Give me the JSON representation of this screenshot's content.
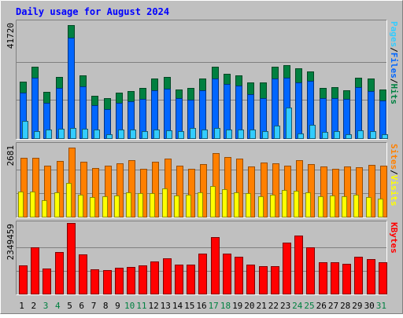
{
  "title": "Daily usage for August 2024",
  "colors": {
    "background": "#c0c0c0",
    "title_text": "#0000ff",
    "frame_dark": "#808080",
    "frame_light": "#ffffff",
    "pages": "#33ccff",
    "files": "#0066ff",
    "hits": "#008040",
    "visits": "#ffff00",
    "sites": "#ff8000",
    "kbytes": "#ff0000",
    "gridline": "#808080",
    "day_normal": "#000000",
    "day_weekend": "#008040"
  },
  "chart_data": [
    {
      "type": "bar",
      "name": "hits-files-pages",
      "y_max_label": "41720",
      "ymax": 41720,
      "legend": [
        {
          "text": "Pages",
          "color": "#33ccff"
        },
        {
          "text": "/",
          "color": "#000000"
        },
        {
          "text": "Files",
          "color": "#0066ff"
        },
        {
          "text": "/",
          "color": "#000000"
        },
        {
          "text": "Hits",
          "color": "#008040"
        }
      ],
      "series": [
        {
          "name": "Hits",
          "color": "#008040",
          "values": [
            20690,
            26290,
            16860,
            22560,
            41300,
            22980,
            15660,
            14730,
            16610,
            17380,
            18440,
            21940,
            22330,
            17790,
            18310,
            21990,
            26310,
            23610,
            23110,
            20360,
            20320,
            26300,
            26790,
            25480,
            24390,
            18530,
            18670,
            17660,
            22230,
            21830,
            17910
          ]
        },
        {
          "name": "Files",
          "color": "#0066ff",
          "values": [
            16780,
            22230,
            12820,
            18290,
            36890,
            18910,
            12050,
            10730,
            12960,
            13440,
            14380,
            17680,
            18070,
            14660,
            14190,
            17640,
            21940,
            19730,
            19240,
            16220,
            14720,
            21980,
            22230,
            20350,
            20930,
            14610,
            14670,
            14320,
            18700,
            17200,
            13830
          ]
        },
        {
          "name": "Pages",
          "color": "#33ccff",
          "values": [
            6390,
            2610,
            3230,
            3540,
            3790,
            3540,
            3110,
            1320,
            3170,
            3210,
            2640,
            3120,
            2990,
            2520,
            3620,
            3200,
            3790,
            3100,
            3040,
            3070,
            2660,
            4730,
            11190,
            1610,
            4840,
            2310,
            2570,
            1530,
            2940,
            2530,
            1470
          ]
        }
      ],
      "categories": [
        "1",
        "2",
        "3",
        "4",
        "5",
        "6",
        "7",
        "8",
        "9",
        "10",
        "11",
        "12",
        "13",
        "14",
        "15",
        "16",
        "17",
        "18",
        "19",
        "20",
        "21",
        "22",
        "23",
        "24",
        "25",
        "26",
        "27",
        "28",
        "29",
        "30",
        "31"
      ]
    },
    {
      "type": "bar",
      "name": "visits-sites",
      "y_max_label": "2681",
      "ymax": 2681,
      "legend": [
        {
          "text": "Sites",
          "color": "#ff8000"
        },
        {
          "text": "/",
          "color": "#000000"
        },
        {
          "text": "Visits",
          "color": "#ffff00"
        }
      ],
      "series": [
        {
          "name": "Sites",
          "color": "#ff8000",
          "values": [
            2270,
            2250,
            1970,
            2140,
            2640,
            2100,
            1870,
            1960,
            2060,
            2180,
            1830,
            2110,
            2240,
            1960,
            1850,
            2020,
            2450,
            2280,
            2230,
            1920,
            2090,
            2050,
            1960,
            2180,
            2020,
            1940,
            1840,
            1920,
            1890,
            1980,
            1950
          ]
        },
        {
          "name": "Visits",
          "color": "#ffff00",
          "values": [
            960,
            960,
            630,
            930,
            1310,
            840,
            760,
            790,
            820,
            920,
            900,
            900,
            1090,
            820,
            830,
            940,
            1160,
            1040,
            920,
            890,
            790,
            830,
            1010,
            1000,
            920,
            780,
            810,
            790,
            850,
            740,
            680
          ]
        }
      ],
      "categories": [
        "1",
        "2",
        "3",
        "4",
        "5",
        "6",
        "7",
        "8",
        "9",
        "10",
        "11",
        "12",
        "13",
        "14",
        "15",
        "16",
        "17",
        "18",
        "19",
        "20",
        "21",
        "22",
        "23",
        "24",
        "25",
        "26",
        "27",
        "28",
        "29",
        "30",
        "31"
      ]
    },
    {
      "type": "bar",
      "name": "kbytes",
      "y_max_label": "2349459",
      "ymax": 2349459,
      "legend": [
        {
          "text": "KBytes",
          "color": "#ff0000"
        }
      ],
      "series": [
        {
          "name": "KBytes",
          "color": "#ff0000",
          "values": [
            970000,
            1580000,
            860000,
            1420000,
            2420000,
            1360000,
            850000,
            810000,
            890000,
            920000,
            970000,
            1100000,
            1220000,
            990000,
            1000000,
            1390000,
            1940000,
            1380000,
            1260000,
            1000000,
            950000,
            950000,
            1750000,
            2000000,
            1580000,
            1080000,
            1080000,
            1020000,
            1280000,
            1200000,
            1080000
          ]
        }
      ],
      "categories": [
        "1",
        "2",
        "3",
        "4",
        "5",
        "6",
        "7",
        "8",
        "9",
        "10",
        "11",
        "12",
        "13",
        "14",
        "15",
        "16",
        "17",
        "18",
        "19",
        "20",
        "21",
        "22",
        "23",
        "24",
        "25",
        "26",
        "27",
        "28",
        "29",
        "30",
        "31"
      ]
    }
  ],
  "x_axis": {
    "labels": [
      "1",
      "2",
      "3",
      "4",
      "5",
      "6",
      "7",
      "8",
      "9",
      "10",
      "11",
      "12",
      "13",
      "14",
      "15",
      "16",
      "17",
      "18",
      "19",
      "20",
      "21",
      "22",
      "23",
      "24",
      "25",
      "26",
      "27",
      "28",
      "29",
      "30",
      "31"
    ],
    "weekend": [
      3,
      4,
      10,
      11,
      17,
      18,
      24,
      25,
      31
    ]
  }
}
